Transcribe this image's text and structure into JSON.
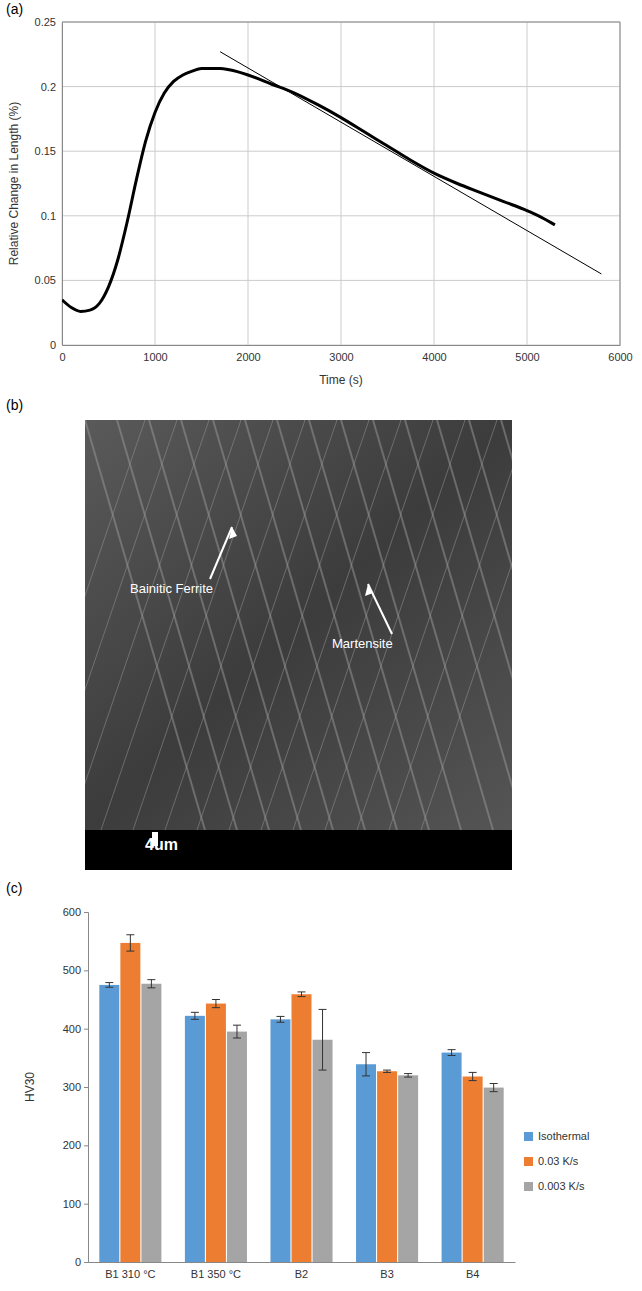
{
  "chart_data": [
    {
      "type": "line",
      "panel": "(a)",
      "x_label": "Time (s)",
      "y_label": "Relative Change in Length (%)",
      "xlim": [
        0,
        6000
      ],
      "xticks": [
        0,
        1000,
        2000,
        3000,
        4000,
        5000,
        6000
      ],
      "ylim": [
        0,
        0.25
      ],
      "yticks": [
        0,
        0.05,
        0.1,
        0.15,
        0.2,
        0.25
      ],
      "grid": true,
      "series": [
        {
          "color": "#000000",
          "line_style": "solid",
          "x": [
            0,
            100,
            200,
            300,
            400,
            500,
            600,
            700,
            800,
            900,
            1000,
            1100,
            1200,
            1300,
            1400,
            1500,
            1600,
            1700,
            1800,
            2000,
            2250,
            2500,
            2750,
            3000,
            3250,
            3500,
            3750,
            4000,
            4250,
            4500,
            4750,
            5000,
            5150,
            5300
          ],
          "values": [
            0.035,
            0.029,
            0.026,
            0.027,
            0.032,
            0.045,
            0.066,
            0.095,
            0.128,
            0.158,
            0.18,
            0.195,
            0.204,
            0.209,
            0.212,
            0.214,
            0.214,
            0.214,
            0.213,
            0.209,
            0.202,
            0.195,
            0.186,
            0.176,
            0.165,
            0.154,
            0.143,
            0.133,
            0.125,
            0.118,
            0.111,
            0.104,
            0.099,
            0.093
          ]
        },
        {
          "color": "#000000",
          "line_style": "solid",
          "x": [
            1700,
            5800
          ],
          "values": [
            0.227,
            0.055
          ]
        }
      ]
    },
    {
      "type": "bar",
      "panel": "(c)",
      "y_label": "HV30",
      "categories": [
        "B1 310 °C",
        "B1 350 °C",
        "B2",
        "B3",
        "B4"
      ],
      "ylim": [
        0,
        600
      ],
      "yticks": [
        0,
        100,
        200,
        300,
        400,
        500,
        600
      ],
      "grid": false,
      "legend": "right",
      "series": [
        {
          "name": "Isothermal",
          "color": "#5b9bd5",
          "values": [
            475,
            422,
            416,
            339,
            359
          ],
          "errors": [
            4,
            6,
            5,
            20,
            5
          ]
        },
        {
          "name": "0.03 K/s",
          "color": "#ed7d31",
          "values": [
            547,
            443,
            459,
            327,
            318
          ],
          "errors": [
            14,
            7,
            4,
            2,
            7
          ]
        },
        {
          "name": "0.003 K/s",
          "color": "#a5a5a5",
          "values": [
            477,
            395,
            381,
            320,
            299
          ],
          "errors": [
            7,
            11,
            52,
            3,
            7
          ]
        }
      ]
    }
  ],
  "micrograph": {
    "panel": "(b)",
    "annotations": [
      "Bainitic Ferrite",
      "Martensite"
    ],
    "scale_bar": "4um"
  }
}
